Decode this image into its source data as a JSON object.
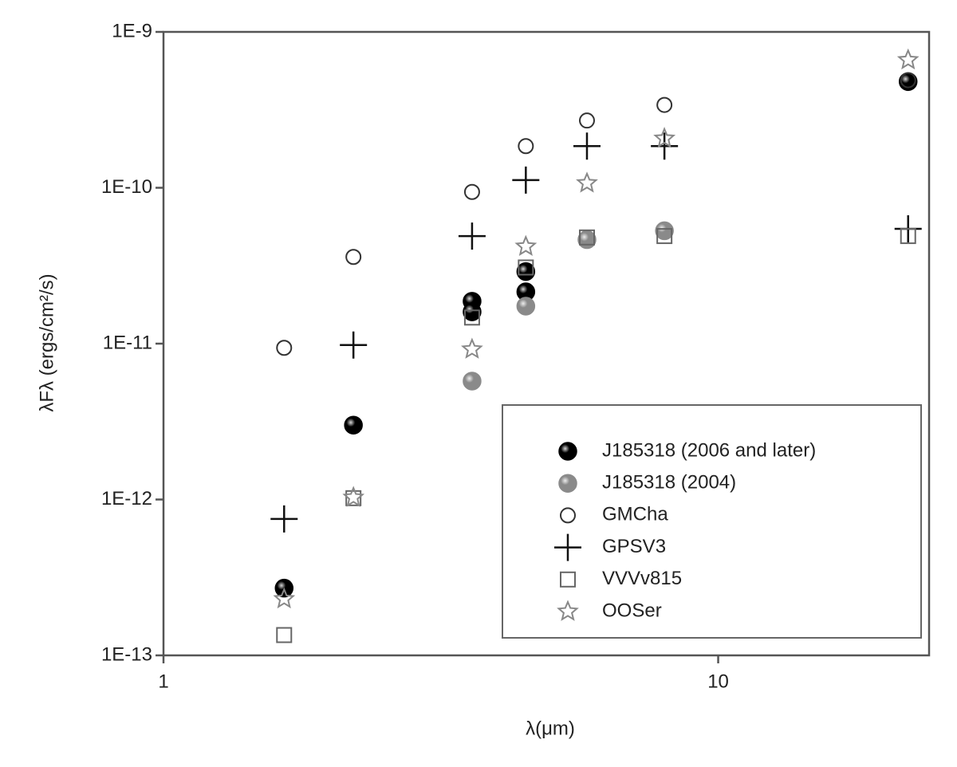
{
  "chart_data": {
    "type": "scatter",
    "xlabel": "λ(μm)",
    "ylabel": "λFλ (ergs/cm²/s)",
    "xscale": "log",
    "yscale": "log",
    "xlim": [
      1,
      24
    ],
    "ylim": [
      1e-13,
      1e-09
    ],
    "xticks": [
      1,
      10
    ],
    "yticks": [
      {
        "value": 1e-13,
        "label": "1E-13"
      },
      {
        "value": 1e-12,
        "label": "1E-12"
      },
      {
        "value": 1e-11,
        "label": "1E-11"
      },
      {
        "value": 1e-10,
        "label": "1E-10"
      },
      {
        "value": 1e-09,
        "label": "1E-9"
      }
    ],
    "legend": "lower right",
    "series": [
      {
        "name": "J185318 (2006 and later)",
        "color": "#000000",
        "marker": "filled-circle",
        "x": [
          1.65,
          2.2,
          3.6,
          3.6,
          4.5,
          4.5,
          22
        ],
        "values": [
          2.7e-13,
          3e-12,
          1.87e-11,
          1.6e-11,
          2.9e-11,
          2.15e-11,
          4.8e-10
        ]
      },
      {
        "name": "J185318 (2004)",
        "color": "#8a8a8a",
        "marker": "filled-circle",
        "x": [
          3.6,
          4.5,
          5.8,
          8.0
        ],
        "values": [
          5.75e-12,
          1.74e-11,
          4.65e-11,
          5.3e-11
        ]
      },
      {
        "name": "GMCha",
        "color": "#333333",
        "marker": "circle",
        "x": [
          1.65,
          2.2,
          3.6,
          4.5,
          5.8,
          8.0,
          22
        ],
        "values": [
          9.4e-12,
          3.6e-11,
          9.4e-11,
          1.85e-10,
          2.7e-10,
          3.4e-10,
          4.9e-10
        ]
      },
      {
        "name": "GPSV3",
        "color": "#111111",
        "marker": "plus",
        "x": [
          1.65,
          2.2,
          3.6,
          4.5,
          5.8,
          8.0,
          22
        ],
        "values": [
          7.5e-13,
          9.8e-12,
          4.9e-11,
          1.12e-10,
          1.85e-10,
          1.85e-10,
          5.45e-11
        ]
      },
      {
        "name": "VVVv815",
        "color": "#666666",
        "marker": "square",
        "x": [
          1.65,
          2.2,
          3.6,
          4.5,
          5.8,
          8.0,
          22
        ],
        "values": [
          1.35e-13,
          1.02e-12,
          1.47e-11,
          3.08e-11,
          4.8e-11,
          4.9e-11,
          4.9e-11
        ]
      },
      {
        "name": "OOSer",
        "color": "#888888",
        "marker": "star",
        "x": [
          1.65,
          2.2,
          3.6,
          4.5,
          5.8,
          8.0,
          22
        ],
        "values": [
          2.3e-13,
          1.03e-12,
          9.2e-12,
          4.2e-11,
          1.07e-10,
          2.07e-10,
          6.6e-10
        ]
      }
    ]
  }
}
